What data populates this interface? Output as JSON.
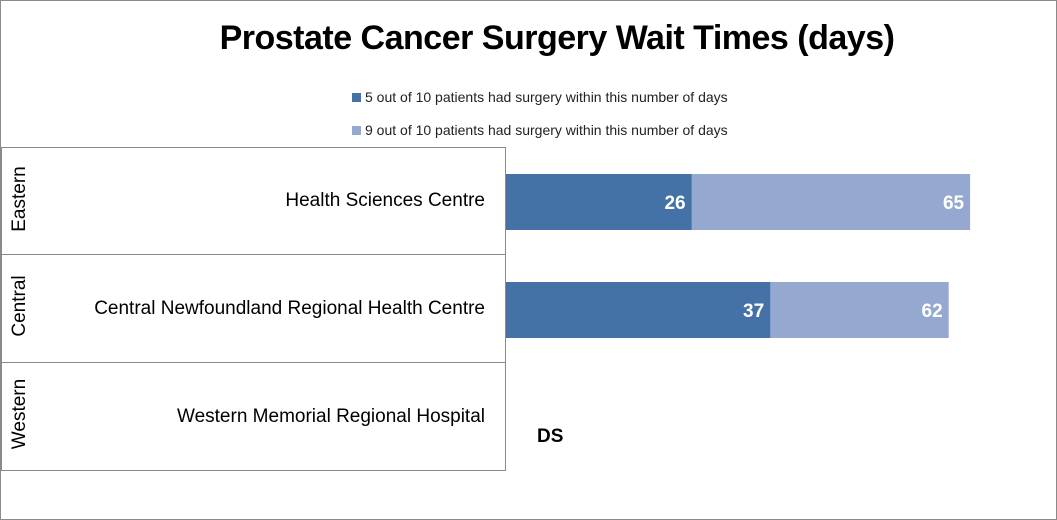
{
  "chart_data": {
    "type": "bar",
    "orientation": "horizontal",
    "title": "Prostate Cancer Surgery Wait Times (days)",
    "legend_position": "top",
    "grid": false,
    "categories": [
      {
        "region": "Eastern",
        "hospital": "Health Sciences Centre"
      },
      {
        "region": "Central",
        "hospital": "Central Newfoundland Regional Health Centre"
      },
      {
        "region": "Western",
        "hospital": "Western Memorial Regional Hospital"
      }
    ],
    "series": [
      {
        "name": "5 out of 10 patients had surgery within this number of days",
        "color": "#4472a6",
        "values": [
          26,
          37,
          null
        ]
      },
      {
        "name": "9 out of 10 patients had surgery within this number of days",
        "color": "#95a9d0",
        "values": [
          65,
          62,
          null
        ]
      }
    ],
    "annotations": [
      {
        "category": "Western Memorial Regional Hospital",
        "text": "DS"
      }
    ]
  }
}
